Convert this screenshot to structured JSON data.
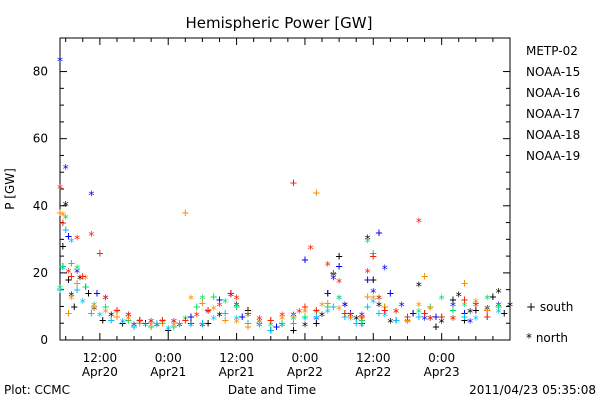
{
  "chart_data": {
    "type": "scatter",
    "title": "Hemispheric Power [GW]",
    "ylabel": "P [GW]",
    "xlabel": "Date and Time",
    "ylim": [
      0,
      90
    ],
    "yticks": [
      0,
      20,
      40,
      60,
      80
    ],
    "xlim_hours_from_apr20_0000": [
      5,
      84
    ],
    "xticks": [
      {
        "hour": 12,
        "time": "12:00",
        "date": "Apr20"
      },
      {
        "hour": 24,
        "time": "0:00",
        "date": "Apr21"
      },
      {
        "hour": 36,
        "time": "12:00",
        "date": "Apr21"
      },
      {
        "hour": 48,
        "time": "0:00",
        "date": "Apr22"
      },
      {
        "hour": 60,
        "time": "12:00",
        "date": "Apr22"
      },
      {
        "hour": 72,
        "time": "0:00",
        "date": "Apr23"
      }
    ],
    "grid": false,
    "legend_position": "right",
    "series": [
      {
        "name": "METP-02",
        "color": "#000000",
        "points": [
          [
            5.5,
            28
          ],
          [
            6,
            40
          ],
          [
            6.5,
            18
          ],
          [
            7,
            13
          ],
          [
            7.5,
            10
          ],
          [
            8.5,
            18
          ],
          [
            10,
            14
          ],
          [
            11,
            9
          ],
          [
            12.5,
            6
          ],
          [
            14,
            7
          ],
          [
            16,
            5
          ],
          [
            18,
            4
          ],
          [
            20,
            5
          ],
          [
            22,
            4
          ],
          [
            24,
            3
          ],
          [
            26,
            4
          ],
          [
            28,
            5
          ],
          [
            30,
            4
          ],
          [
            31,
            5
          ],
          [
            33,
            7
          ],
          [
            35,
            14
          ],
          [
            36,
            10
          ],
          [
            38,
            9
          ],
          [
            40,
            4
          ],
          [
            42,
            3
          ],
          [
            44,
            4
          ],
          [
            46,
            3
          ],
          [
            48,
            4
          ],
          [
            50,
            5
          ],
          [
            51,
            7
          ],
          [
            52,
            14
          ],
          [
            53,
            19
          ],
          [
            54,
            25
          ],
          [
            55,
            10
          ],
          [
            56,
            8
          ],
          [
            57,
            6
          ],
          [
            58,
            5
          ],
          [
            59,
            30
          ],
          [
            60,
            18
          ],
          [
            61,
            10
          ],
          [
            62,
            9
          ],
          [
            63,
            5
          ],
          [
            64,
            6
          ],
          [
            66,
            5
          ],
          [
            67,
            8
          ],
          [
            68,
            16
          ],
          [
            69,
            8
          ],
          [
            70,
            6
          ],
          [
            71,
            4
          ],
          [
            72,
            5
          ],
          [
            74,
            12
          ],
          [
            75,
            13
          ],
          [
            76,
            6
          ],
          [
            77,
            8
          ],
          [
            78,
            9
          ],
          [
            80,
            9
          ],
          [
            81,
            13
          ],
          [
            82,
            14
          ],
          [
            83,
            8
          ],
          [
            84,
            10
          ]
        ]
      },
      {
        "name": "NOAA-15",
        "color": "#0000ff",
        "points": [
          [
            5,
            83
          ],
          [
            5.5,
            22
          ],
          [
            6,
            51
          ],
          [
            6.5,
            31
          ],
          [
            8,
            20
          ],
          [
            9.5,
            16
          ],
          [
            10.5,
            43
          ],
          [
            11.5,
            14
          ],
          [
            13,
            12
          ],
          [
            15,
            9
          ],
          [
            17,
            7
          ],
          [
            19,
            6
          ],
          [
            21,
            5
          ],
          [
            23,
            6
          ],
          [
            25,
            5
          ],
          [
            28,
            7
          ],
          [
            31,
            8
          ],
          [
            33,
            12
          ],
          [
            35,
            13
          ],
          [
            37,
            7
          ],
          [
            40,
            5
          ],
          [
            43,
            4
          ],
          [
            46,
            7
          ],
          [
            48,
            24
          ],
          [
            50,
            6
          ],
          [
            52,
            14
          ],
          [
            53,
            18
          ],
          [
            54,
            22
          ],
          [
            55,
            10
          ],
          [
            56,
            8
          ],
          [
            58,
            7
          ],
          [
            59,
            18
          ],
          [
            60,
            14
          ],
          [
            61,
            32
          ],
          [
            62,
            21
          ],
          [
            63,
            14
          ],
          [
            65,
            10
          ],
          [
            67,
            8
          ],
          [
            69,
            6
          ],
          [
            71,
            7
          ],
          [
            74,
            10
          ],
          [
            76,
            8
          ],
          [
            77,
            5
          ],
          [
            80,
            9
          ],
          [
            82,
            10
          ]
        ]
      },
      {
        "name": "NOAA-16",
        "color": "#00bfff",
        "points": [
          [
            5,
            15
          ],
          [
            5.5,
            21
          ],
          [
            6,
            33
          ],
          [
            7,
            29
          ],
          [
            8,
            15
          ],
          [
            9,
            11
          ],
          [
            10.5,
            8
          ],
          [
            12,
            7
          ],
          [
            14,
            6
          ],
          [
            16,
            5
          ],
          [
            18,
            4
          ],
          [
            20,
            4
          ],
          [
            22,
            5
          ],
          [
            24,
            3
          ],
          [
            26,
            5
          ],
          [
            28,
            4
          ],
          [
            30,
            5
          ],
          [
            32,
            6
          ],
          [
            34,
            8
          ],
          [
            36,
            6
          ],
          [
            38,
            5
          ],
          [
            40,
            4
          ],
          [
            42,
            3
          ],
          [
            44,
            4
          ],
          [
            46,
            5
          ],
          [
            48,
            6
          ],
          [
            50,
            7
          ],
          [
            52,
            8
          ],
          [
            53,
            10
          ],
          [
            54,
            12
          ],
          [
            55,
            7
          ],
          [
            56,
            6
          ],
          [
            57,
            5
          ],
          [
            58,
            4
          ],
          [
            59,
            10
          ],
          [
            60,
            11
          ],
          [
            61,
            8
          ],
          [
            62,
            7
          ],
          [
            64,
            6
          ],
          [
            66,
            5
          ],
          [
            68,
            7
          ],
          [
            70,
            6
          ],
          [
            72,
            7
          ],
          [
            74,
            6
          ],
          [
            76,
            7
          ],
          [
            78,
            6
          ],
          [
            80,
            7
          ],
          [
            82,
            8
          ]
        ]
      },
      {
        "name": "NOAA-17",
        "color": "#00e060",
        "points": [
          [
            5,
            15
          ],
          [
            5.5,
            22
          ],
          [
            6,
            36
          ],
          [
            7,
            23
          ],
          [
            8,
            21
          ],
          [
            9.5,
            16
          ],
          [
            11,
            10
          ],
          [
            13,
            10
          ],
          [
            15,
            8
          ],
          [
            17,
            6
          ],
          [
            19,
            5
          ],
          [
            21,
            4
          ],
          [
            23,
            5
          ],
          [
            25,
            4
          ],
          [
            27,
            6
          ],
          [
            29,
            10
          ],
          [
            30,
            12
          ],
          [
            32,
            13
          ],
          [
            34,
            11
          ],
          [
            36,
            10
          ],
          [
            38,
            7
          ],
          [
            40,
            5
          ],
          [
            42,
            4
          ],
          [
            44,
            5
          ],
          [
            46,
            6
          ],
          [
            48,
            7
          ],
          [
            50,
            8
          ],
          [
            52,
            10
          ],
          [
            54,
            12
          ],
          [
            55,
            8
          ],
          [
            56,
            7
          ],
          [
            58,
            6
          ],
          [
            59,
            29
          ],
          [
            60,
            26
          ],
          [
            61,
            12
          ],
          [
            62,
            10
          ],
          [
            64,
            8
          ],
          [
            66,
            6
          ],
          [
            68,
            8
          ],
          [
            70,
            10
          ],
          [
            72,
            12
          ],
          [
            74,
            9
          ],
          [
            76,
            10
          ],
          [
            78,
            11
          ],
          [
            80,
            12
          ],
          [
            82,
            10
          ]
        ]
      },
      {
        "name": "NOAA-18",
        "color": "#ff8c00",
        "points": [
          [
            5,
            38
          ],
          [
            5.5,
            37
          ],
          [
            6.5,
            8
          ],
          [
            7,
            12
          ],
          [
            8,
            17
          ],
          [
            9.5,
            18
          ],
          [
            11,
            10
          ],
          [
            13,
            8
          ],
          [
            15,
            7
          ],
          [
            17,
            6
          ],
          [
            19,
            5
          ],
          [
            21,
            4
          ],
          [
            23,
            5
          ],
          [
            25,
            4
          ],
          [
            27,
            38
          ],
          [
            28,
            12
          ],
          [
            30,
            11
          ],
          [
            32,
            9
          ],
          [
            34,
            6
          ],
          [
            36,
            5
          ],
          [
            38,
            4
          ],
          [
            40,
            5
          ],
          [
            42,
            6
          ],
          [
            44,
            6
          ],
          [
            46,
            7
          ],
          [
            48,
            8
          ],
          [
            50,
            44
          ],
          [
            51,
            10
          ],
          [
            52,
            11
          ],
          [
            54,
            9
          ],
          [
            56,
            7
          ],
          [
            58,
            6
          ],
          [
            59,
            13
          ],
          [
            60,
            12
          ],
          [
            62,
            10
          ],
          [
            64,
            8
          ],
          [
            66,
            6
          ],
          [
            68,
            10
          ],
          [
            69,
            19
          ],
          [
            70,
            9
          ],
          [
            72,
            7
          ],
          [
            74,
            6
          ],
          [
            76,
            17
          ],
          [
            78,
            11
          ],
          [
            80,
            9
          ]
        ]
      },
      {
        "name": "NOAA-19",
        "color": "#ff2000",
        "points": [
          [
            5,
            45
          ],
          [
            5.5,
            35
          ],
          [
            6.5,
            20
          ],
          [
            7,
            19
          ],
          [
            8,
            30
          ],
          [
            9,
            19
          ],
          [
            10.5,
            31
          ],
          [
            12,
            26
          ],
          [
            13,
            12
          ],
          [
            15,
            9
          ],
          [
            17,
            7
          ],
          [
            19,
            6
          ],
          [
            21,
            5
          ],
          [
            23,
            6
          ],
          [
            25,
            5
          ],
          [
            27,
            6
          ],
          [
            29,
            7
          ],
          [
            31,
            9
          ],
          [
            33,
            10
          ],
          [
            35,
            14
          ],
          [
            36,
            12
          ],
          [
            38,
            8
          ],
          [
            40,
            6
          ],
          [
            42,
            6
          ],
          [
            44,
            7
          ],
          [
            46,
            47
          ],
          [
            47,
            8
          ],
          [
            48,
            10
          ],
          [
            49,
            27
          ],
          [
            50,
            9
          ],
          [
            52,
            22
          ],
          [
            53,
            20
          ],
          [
            54,
            17
          ],
          [
            55,
            8
          ],
          [
            56,
            7
          ],
          [
            58,
            7
          ],
          [
            59,
            20
          ],
          [
            60,
            25
          ],
          [
            61,
            12
          ],
          [
            62,
            9
          ],
          [
            64,
            8
          ],
          [
            66,
            7
          ],
          [
            68,
            35
          ],
          [
            69,
            8
          ],
          [
            70,
            6
          ],
          [
            72,
            7
          ],
          [
            74,
            6
          ],
          [
            76,
            12
          ],
          [
            78,
            10
          ],
          [
            80,
            7
          ]
        ]
      }
    ],
    "symbols": [
      {
        "glyph": "+",
        "label": "south"
      },
      {
        "glyph": "*",
        "label": "north"
      }
    ]
  },
  "footer": {
    "plot_credit": "Plot: CCMC",
    "timestamp": "2011/04/23 05:35:08"
  }
}
